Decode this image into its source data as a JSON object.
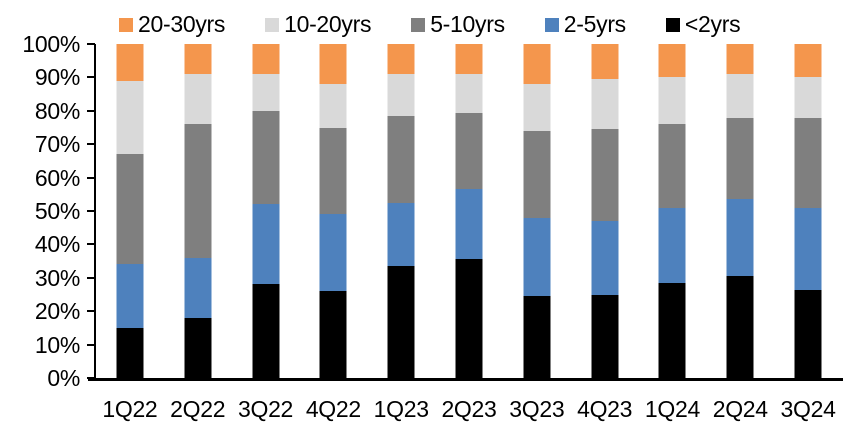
{
  "chart_data": {
    "type": "bar",
    "variant": "stacked-100-percent-column",
    "title": "",
    "xlabel": "",
    "ylabel": "",
    "gridlines": false,
    "legend_position": "top",
    "legend_order": [
      "20-30yrs",
      "10-20yrs",
      "5-10yrs",
      "2-5yrs",
      "<2yrs"
    ],
    "categories": [
      "1Q22",
      "2Q22",
      "3Q22",
      "4Q22",
      "1Q23",
      "2Q23",
      "3Q23",
      "4Q23",
      "1Q24",
      "2Q24",
      "3Q24"
    ],
    "series": [
      {
        "name": "<2yrs",
        "color": "#000000",
        "values": [
          15,
          18,
          28,
          26,
          33.5,
          35.5,
          24.5,
          25,
          28.5,
          30.5,
          26.5
        ]
      },
      {
        "name": "2-5yrs",
        "color": "#4E81BD",
        "values": [
          19,
          18,
          24,
          23,
          19,
          21,
          23.5,
          22,
          22.5,
          23,
          24.5
        ]
      },
      {
        "name": "5-10yrs",
        "color": "#7F7F7F",
        "values": [
          33,
          40,
          28,
          26,
          26,
          23,
          26,
          27.5,
          25,
          24.5,
          27
        ]
      },
      {
        "name": "10-20yrs",
        "color": "#D9D9D9",
        "values": [
          22,
          15,
          11,
          13,
          12.5,
          11.5,
          14,
          15,
          14,
          13,
          12
        ]
      },
      {
        "name": "20-30yrs",
        "color": "#F4964D",
        "values": [
          11,
          9,
          9,
          12,
          9,
          9,
          12,
          10.5,
          10,
          9,
          10
        ]
      }
    ],
    "y_axis": {
      "min": 0,
      "max": 100,
      "unit": "%",
      "tick_labels": [
        "0%",
        "10%",
        "20%",
        "30%",
        "40%",
        "50%",
        "60%",
        "70%",
        "80%",
        "90%",
        "100%"
      ]
    }
  },
  "colors": {
    "background": "#ffffff",
    "axis": "#000000",
    "text": "#000000"
  }
}
